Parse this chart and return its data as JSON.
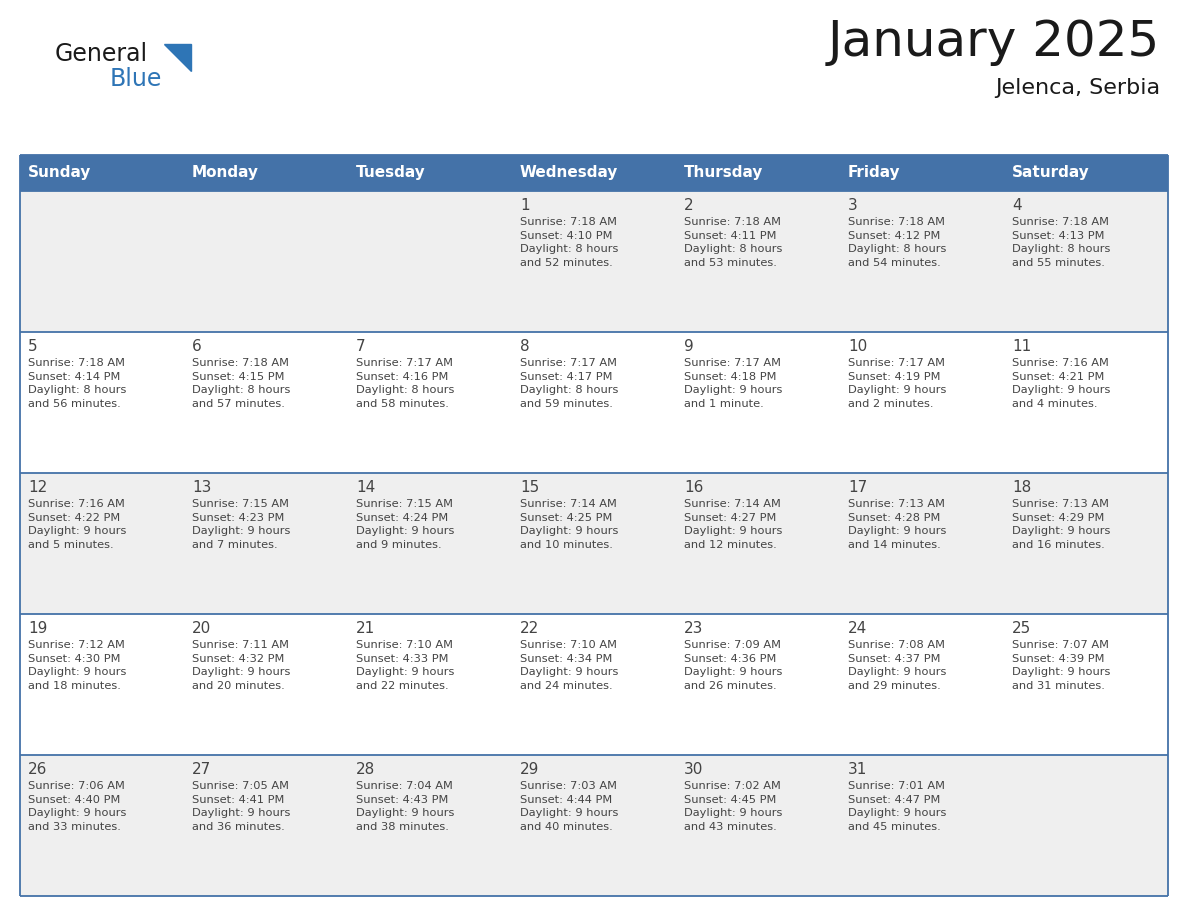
{
  "title": "January 2025",
  "subtitle": "Jelenca, Serbia",
  "days_of_week": [
    "Sunday",
    "Monday",
    "Tuesday",
    "Wednesday",
    "Thursday",
    "Friday",
    "Saturday"
  ],
  "header_bg": "#4472a8",
  "header_text_color": "#ffffff",
  "cell_bg_even": "#efefef",
  "cell_bg_odd": "#ffffff",
  "text_color": "#444444",
  "line_color": "#4472a8",
  "logo_general_color": "#1a1a1a",
  "logo_blue_color": "#2e75b6",
  "title_color": "#1a1a1a",
  "calendar_data": [
    [
      null,
      null,
      null,
      {
        "day": 1,
        "sunrise": "7:18 AM",
        "sunset": "4:10 PM",
        "daylight": "8 hours and 52 minutes"
      },
      {
        "day": 2,
        "sunrise": "7:18 AM",
        "sunset": "4:11 PM",
        "daylight": "8 hours and 53 minutes"
      },
      {
        "day": 3,
        "sunrise": "7:18 AM",
        "sunset": "4:12 PM",
        "daylight": "8 hours and 54 minutes"
      },
      {
        "day": 4,
        "sunrise": "7:18 AM",
        "sunset": "4:13 PM",
        "daylight": "8 hours and 55 minutes"
      }
    ],
    [
      {
        "day": 5,
        "sunrise": "7:18 AM",
        "sunset": "4:14 PM",
        "daylight": "8 hours and 56 minutes"
      },
      {
        "day": 6,
        "sunrise": "7:18 AM",
        "sunset": "4:15 PM",
        "daylight": "8 hours and 57 minutes"
      },
      {
        "day": 7,
        "sunrise": "7:17 AM",
        "sunset": "4:16 PM",
        "daylight": "8 hours and 58 minutes"
      },
      {
        "day": 8,
        "sunrise": "7:17 AM",
        "sunset": "4:17 PM",
        "daylight": "8 hours and 59 minutes"
      },
      {
        "day": 9,
        "sunrise": "7:17 AM",
        "sunset": "4:18 PM",
        "daylight": "9 hours and 1 minute"
      },
      {
        "day": 10,
        "sunrise": "7:17 AM",
        "sunset": "4:19 PM",
        "daylight": "9 hours and 2 minutes"
      },
      {
        "day": 11,
        "sunrise": "7:16 AM",
        "sunset": "4:21 PM",
        "daylight": "9 hours and 4 minutes"
      }
    ],
    [
      {
        "day": 12,
        "sunrise": "7:16 AM",
        "sunset": "4:22 PM",
        "daylight": "9 hours and 5 minutes"
      },
      {
        "day": 13,
        "sunrise": "7:15 AM",
        "sunset": "4:23 PM",
        "daylight": "9 hours and 7 minutes"
      },
      {
        "day": 14,
        "sunrise": "7:15 AM",
        "sunset": "4:24 PM",
        "daylight": "9 hours and 9 minutes"
      },
      {
        "day": 15,
        "sunrise": "7:14 AM",
        "sunset": "4:25 PM",
        "daylight": "9 hours and 10 minutes"
      },
      {
        "day": 16,
        "sunrise": "7:14 AM",
        "sunset": "4:27 PM",
        "daylight": "9 hours and 12 minutes"
      },
      {
        "day": 17,
        "sunrise": "7:13 AM",
        "sunset": "4:28 PM",
        "daylight": "9 hours and 14 minutes"
      },
      {
        "day": 18,
        "sunrise": "7:13 AM",
        "sunset": "4:29 PM",
        "daylight": "9 hours and 16 minutes"
      }
    ],
    [
      {
        "day": 19,
        "sunrise": "7:12 AM",
        "sunset": "4:30 PM",
        "daylight": "9 hours and 18 minutes"
      },
      {
        "day": 20,
        "sunrise": "7:11 AM",
        "sunset": "4:32 PM",
        "daylight": "9 hours and 20 minutes"
      },
      {
        "day": 21,
        "sunrise": "7:10 AM",
        "sunset": "4:33 PM",
        "daylight": "9 hours and 22 minutes"
      },
      {
        "day": 22,
        "sunrise": "7:10 AM",
        "sunset": "4:34 PM",
        "daylight": "9 hours and 24 minutes"
      },
      {
        "day": 23,
        "sunrise": "7:09 AM",
        "sunset": "4:36 PM",
        "daylight": "9 hours and 26 minutes"
      },
      {
        "day": 24,
        "sunrise": "7:08 AM",
        "sunset": "4:37 PM",
        "daylight": "9 hours and 29 minutes"
      },
      {
        "day": 25,
        "sunrise": "7:07 AM",
        "sunset": "4:39 PM",
        "daylight": "9 hours and 31 minutes"
      }
    ],
    [
      {
        "day": 26,
        "sunrise": "7:06 AM",
        "sunset": "4:40 PM",
        "daylight": "9 hours and 33 minutes"
      },
      {
        "day": 27,
        "sunrise": "7:05 AM",
        "sunset": "4:41 PM",
        "daylight": "9 hours and 36 minutes"
      },
      {
        "day": 28,
        "sunrise": "7:04 AM",
        "sunset": "4:43 PM",
        "daylight": "9 hours and 38 minutes"
      },
      {
        "day": 29,
        "sunrise": "7:03 AM",
        "sunset": "4:44 PM",
        "daylight": "9 hours and 40 minutes"
      },
      {
        "day": 30,
        "sunrise": "7:02 AM",
        "sunset": "4:45 PM",
        "daylight": "9 hours and 43 minutes"
      },
      {
        "day": 31,
        "sunrise": "7:01 AM",
        "sunset": "4:47 PM",
        "daylight": "9 hours and 45 minutes"
      },
      null
    ]
  ]
}
